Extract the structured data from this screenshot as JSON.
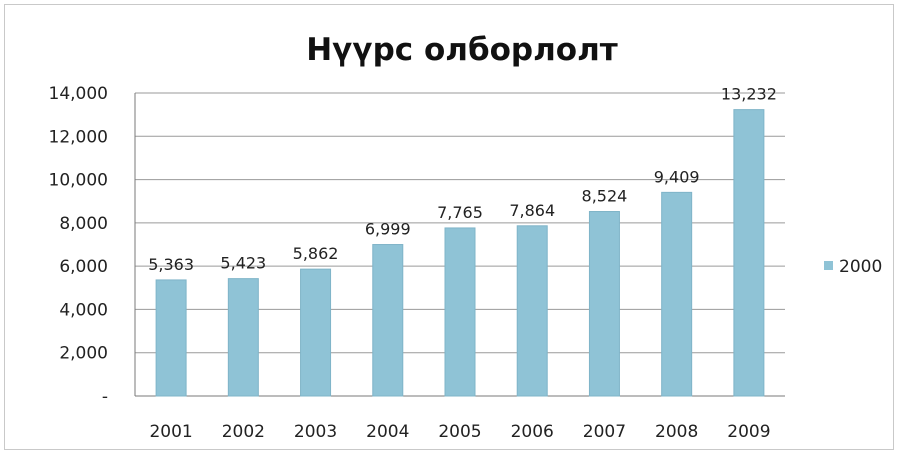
{
  "chart_data": {
    "type": "bar",
    "title": "Нүүрс олборлолт",
    "xlabel": "",
    "ylabel": "",
    "categories": [
      "2001",
      "2002",
      "2003",
      "2004",
      "2005",
      "2006",
      "2007",
      "2008",
      "2009"
    ],
    "series": [
      {
        "name": "2000",
        "values": [
          5363,
          5423,
          5862,
          6999,
          7765,
          7864,
          8524,
          9409,
          13232
        ],
        "data_labels": [
          "5,363",
          "5,423",
          "5,862",
          "6,999",
          "7,765",
          "7,864",
          "8,524",
          "9,409",
          "13,232"
        ]
      }
    ],
    "y_tick_labels": [
      "-",
      "2,000",
      "4,000",
      "6,000",
      "8,000",
      "10,000",
      "12,000",
      "14,000"
    ],
    "y_ticks": [
      0,
      2000,
      4000,
      6000,
      8000,
      10000,
      12000,
      14000
    ],
    "ylim": [
      0,
      14000
    ],
    "grid": true,
    "legend_position": "right",
    "colors": {
      "bar": "#8fc3d6",
      "bar_edge": "#7fb4c8",
      "grid": "#9a9a9a",
      "axis": "#7a7a7a"
    }
  }
}
